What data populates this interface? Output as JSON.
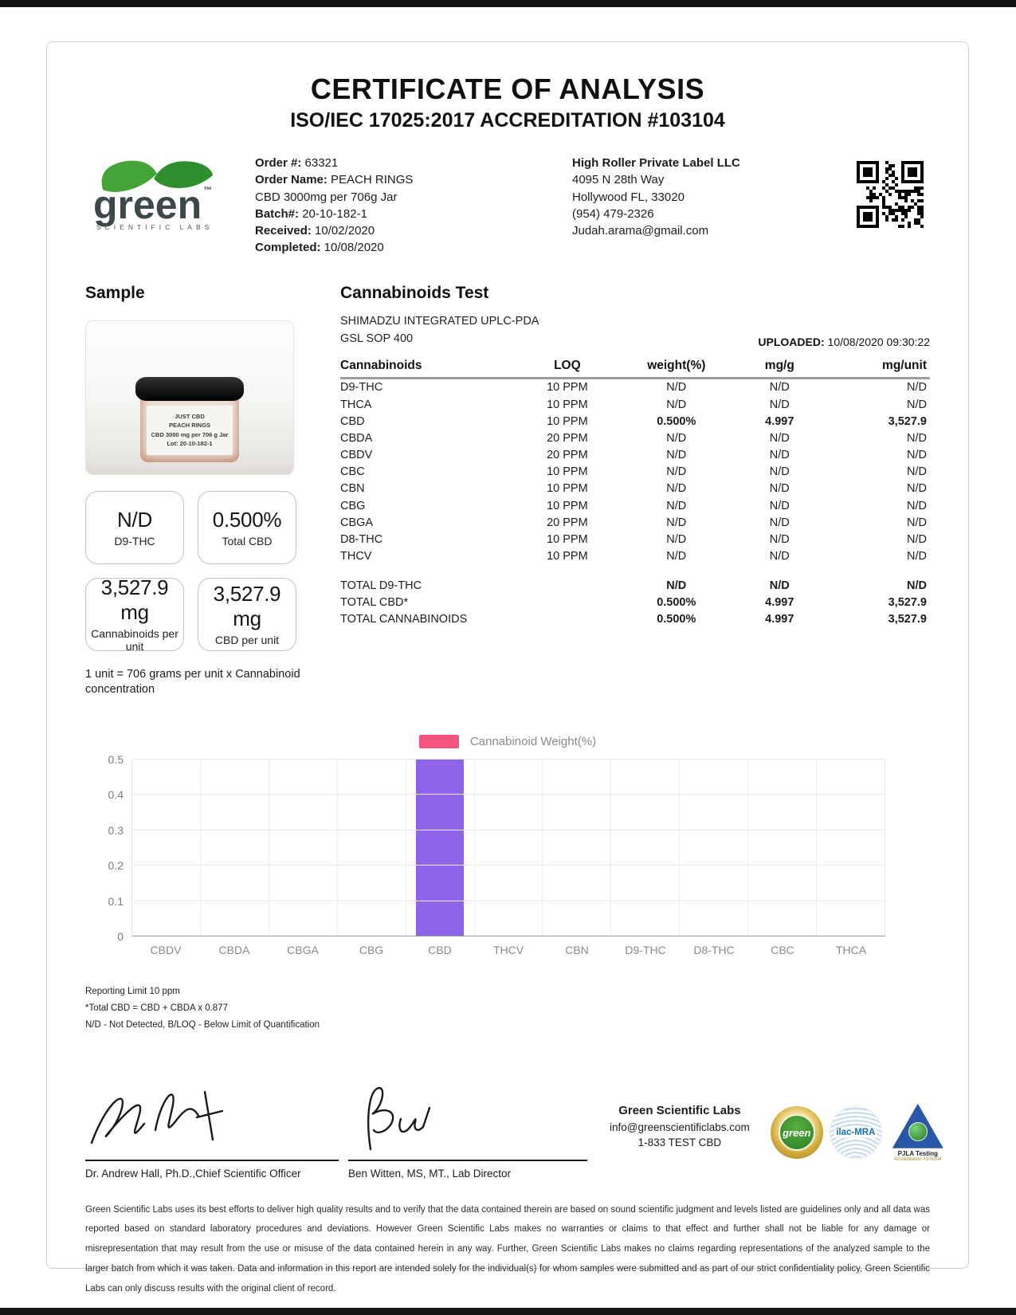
{
  "header": {
    "title": "CERTIFICATE OF ANALYSIS",
    "subtitle": "ISO/IEC 17025:2017 ACCREDITATION #103104"
  },
  "logo": {
    "brand": "green",
    "tagline": "SCIENTIFIC LABS"
  },
  "order": {
    "order_label": "Order #:",
    "order_value": "63321",
    "name_label": "Order Name:",
    "name_value": "PEACH RINGS",
    "name_line2": "CBD 3000mg per 706g Jar",
    "batch_label": "Batch#:",
    "batch_value": "20-10-182-1",
    "received_label": "Received:",
    "received_value": "10/02/2020",
    "completed_label": "Completed:",
    "completed_value": "10/08/2020"
  },
  "client": {
    "name": "High Roller Private Label LLC",
    "address1": "4095 N 28th Way",
    "address2": "Hollywood FL, 33020",
    "phone": "(954) 479-2326",
    "email": "Judah.arama@gmail.com"
  },
  "sample": {
    "heading": "Sample",
    "jar_label_lines": [
      "JUST CBD",
      "PEACH RINGS",
      "CBD 3000 mg per 706 g Jar",
      "Lot: 20-10-182-1"
    ],
    "result_boxes": [
      {
        "value": "N/D",
        "label": "D9-THC"
      },
      {
        "value": "0.500%",
        "label": "Total CBD"
      },
      {
        "value": "3,527.9 mg",
        "label": "Cannabinoids per unit"
      },
      {
        "value": "3,527.9 mg",
        "label": "CBD per unit"
      }
    ],
    "unit_note_line1": "1 unit = 706 grams per unit x Cannabinoid",
    "unit_note_line2": "concentration"
  },
  "test": {
    "heading": "Cannabinoids Test",
    "method_line1": "SHIMADZU INTEGRATED UPLC-PDA",
    "method_line2": "GSL SOP 400",
    "uploaded_label": "UPLOADED:",
    "uploaded_value": "10/08/2020 09:30:22",
    "table": {
      "headers": [
        "Cannabinoids",
        "LOQ",
        "weight(%)",
        "mg/g",
        "mg/unit"
      ],
      "rows": [
        {
          "name": "D9-THC",
          "loq": "10 PPM",
          "weight": "N/D",
          "mgg": "N/D",
          "mgunit": "N/D",
          "bold": false
        },
        {
          "name": "THCA",
          "loq": "10 PPM",
          "weight": "N/D",
          "mgg": "N/D",
          "mgunit": "N/D",
          "bold": false
        },
        {
          "name": "CBD",
          "loq": "10 PPM",
          "weight": "0.500%",
          "mgg": "4.997",
          "mgunit": "3,527.9",
          "bold": true
        },
        {
          "name": "CBDA",
          "loq": "20 PPM",
          "weight": "N/D",
          "mgg": "N/D",
          "mgunit": "N/D",
          "bold": false
        },
        {
          "name": "CBDV",
          "loq": "20 PPM",
          "weight": "N/D",
          "mgg": "N/D",
          "mgunit": "N/D",
          "bold": false
        },
        {
          "name": "CBC",
          "loq": "10 PPM",
          "weight": "N/D",
          "mgg": "N/D",
          "mgunit": "N/D",
          "bold": false
        },
        {
          "name": "CBN",
          "loq": "10 PPM",
          "weight": "N/D",
          "mgg": "N/D",
          "mgunit": "N/D",
          "bold": false
        },
        {
          "name": "CBG",
          "loq": "10 PPM",
          "weight": "N/D",
          "mgg": "N/D",
          "mgunit": "N/D",
          "bold": false
        },
        {
          "name": "CBGA",
          "loq": "20 PPM",
          "weight": "N/D",
          "mgg": "N/D",
          "mgunit": "N/D",
          "bold": false
        },
        {
          "name": "D8-THC",
          "loq": "10 PPM",
          "weight": "N/D",
          "mgg": "N/D",
          "mgunit": "N/D",
          "bold": false
        },
        {
          "name": "THCV",
          "loq": "10 PPM",
          "weight": "N/D",
          "mgg": "N/D",
          "mgunit": "N/D",
          "bold": false
        }
      ],
      "totals": [
        {
          "name": "TOTAL D9-THC",
          "weight": "N/D",
          "mgg": "N/D",
          "mgunit": "N/D"
        },
        {
          "name": "TOTAL CBD*",
          "weight": "0.500%",
          "mgg": "4.997",
          "mgunit": "3,527.9"
        },
        {
          "name": "TOTAL CANNABINOIDS",
          "weight": "0.500%",
          "mgg": "4.997",
          "mgunit": "3,527.9"
        }
      ]
    }
  },
  "chart_data": {
    "type": "bar",
    "title": "",
    "legend": "Cannabinoid Weight(%)",
    "legend_color": "#f4547d",
    "bar_color": "#8d64ea",
    "categories": [
      "CBDV",
      "CBDA",
      "CBGA",
      "CBG",
      "CBD",
      "THCV",
      "CBN",
      "D9-THC",
      "D8-THC",
      "CBC",
      "THCA"
    ],
    "values": [
      0,
      0,
      0,
      0,
      0.5,
      0,
      0,
      0,
      0,
      0,
      0
    ],
    "xlabel": "",
    "ylabel": "",
    "ylim": [
      0,
      0.5
    ],
    "yticks": [
      0,
      0.1,
      0.2,
      0.3,
      0.4,
      0.5
    ],
    "grid": true,
    "legend_position": "top"
  },
  "notes": [
    "Reporting Limit 10 ppm",
    "*Total CBD = CBD + CBDA x 0.877",
    "N/D - Not Detected, B/LOQ - Below Limit of Quantification"
  ],
  "signatures": [
    {
      "name": "Dr. Andrew Hall, Ph.D.,Chief Scientific Officer"
    },
    {
      "name": "Ben Witten, MS, MT., Lab Director"
    }
  ],
  "lab_contact": {
    "name": "Green Scientific Labs",
    "email": "info@greenscientificlabs.com",
    "phone": "1-833 TEST CBD"
  },
  "badges": {
    "green_seal": "green",
    "ilac": "ilac-MRA",
    "pjla_line1": "PJLA Testing",
    "pjla_line2": "Accreditation #103104"
  },
  "disclaimer": "Green Scientific Labs uses its best efforts to deliver high quality results and to verify that the data contained therein are based on sound scientific judgment and levels listed are guidelines only and all data was reported based on standard laboratory procedures and deviations. However Green Scientific Labs makes no warranties or claims to that effect and further shall not be liable for any damage or misrepresentation that may result from the use or misuse of the data contained herein in any way. Further, Green Scientific Labs makes no claims regarding representations of the analyzed sample to the larger batch from which it was taken. Data and information in this report are intended solely for the individual(s) for whom samples were submitted and as part of our strict confidentiality policy, Green Scientific Labs can only discuss results with the original client of record."
}
